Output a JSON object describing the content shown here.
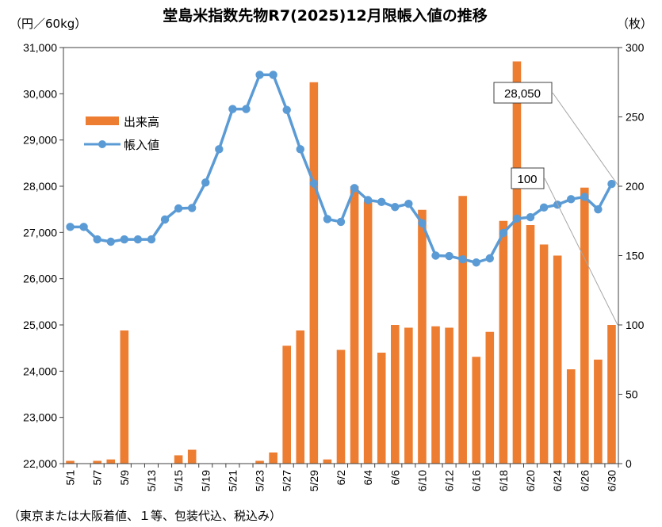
{
  "chart_data": {
    "type": "bar+line",
    "title": "堂島米指数先物R7(2025)12月限帳入値の推移",
    "left_unit": "（円／60kg）",
    "right_unit": "（枚）",
    "footnote": "（東京または大阪着値、１等、包装代込、税込み）",
    "left_axis": {
      "min": 22000,
      "max": 31000,
      "step": 1000,
      "tick_labels": [
        "22,000",
        "23,000",
        "24,000",
        "25,000",
        "26,000",
        "27,000",
        "28,000",
        "29,000",
        "30,000",
        "31,000"
      ]
    },
    "right_axis": {
      "min": 0,
      "max": 300,
      "step": 50,
      "tick_labels": [
        "0",
        "50",
        "100",
        "150",
        "200",
        "250",
        "300"
      ]
    },
    "x_labels": [
      "5/1",
      "5/7",
      "5/9",
      "5/13",
      "5/15",
      "5/19",
      "5/21",
      "5/23",
      "5/27",
      "5/29",
      "6/2",
      "6/4",
      "6/6",
      "6/10",
      "6/12",
      "6/16",
      "6/18",
      "6/20",
      "6/24",
      "6/26",
      "6/30"
    ],
    "legend": [
      "出来高",
      "帳入値"
    ],
    "series": [
      {
        "name": "出来高",
        "type": "bar",
        "axis": "right",
        "color": "#ED7D31",
        "values": [
          2,
          0,
          2,
          3,
          96,
          0,
          0,
          0,
          6,
          10,
          0,
          0,
          0,
          0,
          2,
          8,
          85,
          96,
          275,
          3,
          82,
          200,
          189,
          80,
          100,
          98,
          183,
          99,
          98,
          193,
          77,
          95,
          175,
          290,
          172,
          158,
          150,
          68,
          199,
          75,
          100
        ]
      },
      {
        "name": "帳入値",
        "type": "line",
        "axis": "left",
        "color": "#5B9BD5",
        "values": [
          27120,
          27120,
          26850,
          26800,
          26850,
          26850,
          26850,
          27280,
          27520,
          27530,
          28080,
          28800,
          29670,
          29670,
          30410,
          30410,
          29650,
          28800,
          28060,
          27290,
          27230,
          27960,
          27700,
          27660,
          27550,
          27620,
          27200,
          26500,
          26490,
          26420,
          26350,
          26440,
          26990,
          27300,
          27330,
          27540,
          27600,
          27720,
          27770,
          27500,
          28050
        ]
      }
    ],
    "callouts": [
      "28,050",
      "100"
    ],
    "colors": {
      "bar": "#ED7D31",
      "line": "#5B9BD5",
      "callout_line": "#A6A6A6"
    }
  }
}
